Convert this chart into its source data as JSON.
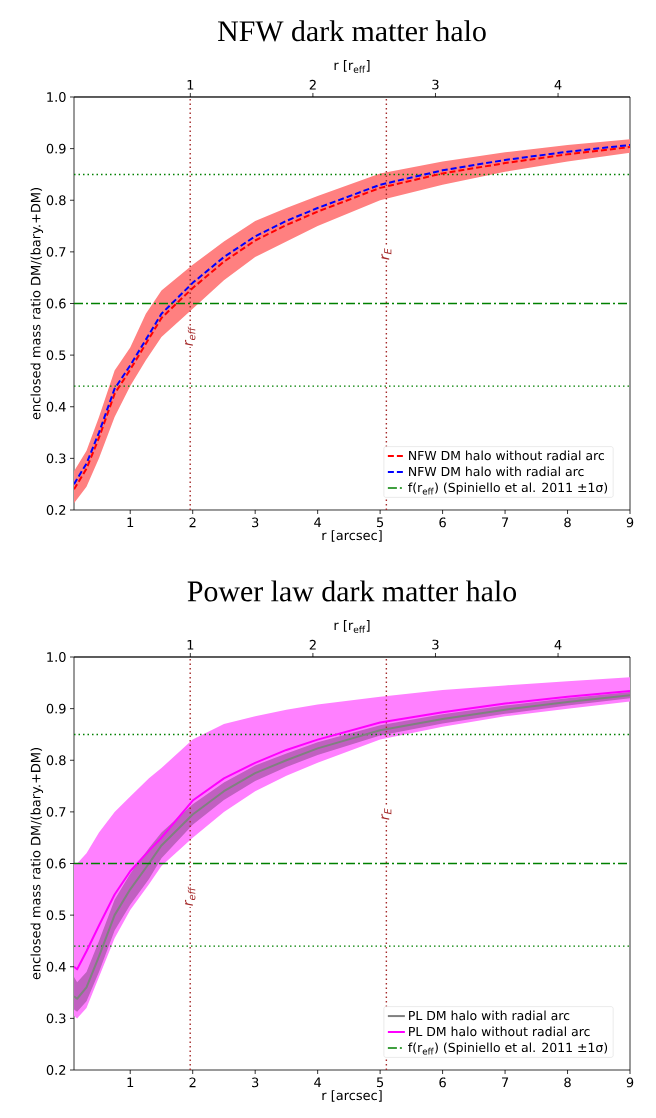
{
  "chart_data": [
    {
      "type": "line",
      "title": "NFW dark matter halo",
      "xlabel": "r [arcsec]",
      "ylabel": "enclosed mass ratio DM/(bary.+DM)",
      "x2label": "r [r$_{eff}$]",
      "x": [
        0.1,
        0.3,
        0.5,
        0.75,
        1,
        1.25,
        1.5,
        2,
        2.5,
        3,
        3.5,
        4,
        5,
        6,
        7,
        8,
        9
      ],
      "series": [
        {
          "name": "NFW DM halo without radial arc",
          "color": "#ff0000",
          "line_style": "dashed",
          "values": [
            0.24,
            0.28,
            0.34,
            0.425,
            0.472,
            0.522,
            0.572,
            0.63,
            0.681,
            0.722,
            0.752,
            0.778,
            0.824,
            0.852,
            0.872,
            0.889,
            0.903
          ],
          "lower": [
            0.213,
            0.245,
            0.3,
            0.38,
            0.44,
            0.49,
            0.535,
            0.59,
            0.645,
            0.69,
            0.72,
            0.75,
            0.8,
            0.83,
            0.855,
            0.875,
            0.892
          ],
          "upper": [
            0.275,
            0.315,
            0.38,
            0.47,
            0.515,
            0.58,
            0.625,
            0.675,
            0.72,
            0.76,
            0.785,
            0.808,
            0.852,
            0.875,
            0.893,
            0.907,
            0.918
          ]
        },
        {
          "name": "NFW DM halo with radial arc",
          "color": "#0000ff",
          "line_style": "dashed",
          "values": [
            0.25,
            0.29,
            0.35,
            0.435,
            0.48,
            0.53,
            0.58,
            0.64,
            0.69,
            0.73,
            0.76,
            0.785,
            0.83,
            0.858,
            0.878,
            0.894,
            0.907
          ]
        }
      ],
      "xlim": [
        0.1,
        9
      ],
      "xticks": [
        1,
        2,
        3,
        4,
        5,
        6,
        7,
        8,
        9
      ],
      "ylim": [
        0.2,
        1.0
      ],
      "yticks": [
        0.2,
        0.3,
        0.4,
        0.5,
        0.6,
        0.7,
        0.8,
        0.9,
        {
          "value": 1.0,
          "label": "1.0"
        }
      ],
      "x2lim": [
        0.051,
        4.587
      ],
      "x2ticks": [
        1,
        2,
        3,
        4
      ],
      "ref_lines": [
        {
          "axis": "x",
          "value": 1.96,
          "label": "r$_{eff}$",
          "color": "#a52a2a",
          "line_style": "dotted"
        },
        {
          "axis": "x",
          "value": 5.1,
          "label": "r$_{E}$",
          "color": "#a52a2a",
          "line_style": "dotted"
        },
        {
          "axis": "y",
          "value": 0.85,
          "color": "#008000",
          "line_style": "dotted"
        },
        {
          "axis": "y",
          "value": 0.44,
          "color": "#008000",
          "line_style": "dotted"
        },
        {
          "axis": "y",
          "value": 0.6,
          "label": "f(r$_{eff}$) (Spiniello et al. 2011 ±1σ)",
          "color": "#008000",
          "line_style": "dashdot"
        }
      ],
      "legend": "bottom right"
    },
    {
      "type": "line",
      "title": "Power law dark matter halo",
      "xlabel": "r [arcsec]",
      "ylabel": "enclosed mass ratio DM/(bary.+DM)",
      "x2label": "r [r$_{eff}$]",
      "x": [
        0.1,
        0.15,
        0.3,
        0.5,
        0.75,
        1,
        1.3,
        1.5,
        2,
        2.5,
        3,
        3.5,
        4,
        5,
        6,
        7,
        8,
        9
      ],
      "series": [
        {
          "name": "PL DM halo with radial arc",
          "color": "#808080",
          "line_style": "solid",
          "values": [
            0.343,
            0.338,
            0.36,
            0.42,
            0.5,
            0.55,
            0.6,
            0.635,
            0.695,
            0.74,
            0.775,
            0.8,
            0.823,
            0.858,
            0.88,
            0.898,
            0.913,
            0.926
          ],
          "lower": [
            0.317,
            0.313,
            0.333,
            0.39,
            0.47,
            0.52,
            0.57,
            0.61,
            0.675,
            0.723,
            0.76,
            0.787,
            0.81,
            0.848,
            0.871,
            0.89,
            0.906,
            0.92
          ],
          "upper": [
            0.38,
            0.37,
            0.39,
            0.45,
            0.53,
            0.58,
            0.63,
            0.66,
            0.715,
            0.757,
            0.79,
            0.813,
            0.835,
            0.868,
            0.889,
            0.906,
            0.92,
            0.932
          ]
        },
        {
          "name": "PL DM halo without radial arc",
          "color": "#ff00ff",
          "line_style": "solid",
          "values": [
            0.4,
            0.395,
            0.43,
            0.48,
            0.54,
            0.585,
            0.625,
            0.65,
            0.722,
            0.765,
            0.795,
            0.82,
            0.84,
            0.873,
            0.893,
            0.91,
            0.923,
            0.934
          ],
          "lower": [
            0.305,
            0.3,
            0.32,
            0.38,
            0.455,
            0.51,
            0.56,
            0.595,
            0.65,
            0.7,
            0.74,
            0.77,
            0.795,
            0.84,
            0.865,
            0.885,
            0.9,
            0.914
          ],
          "upper": [
            0.6,
            0.6,
            0.62,
            0.66,
            0.7,
            0.73,
            0.765,
            0.785,
            0.84,
            0.87,
            0.885,
            0.898,
            0.908,
            0.923,
            0.936,
            0.945,
            0.953,
            0.961
          ]
        }
      ],
      "xlim": [
        0.1,
        9
      ],
      "xticks": [
        1,
        2,
        3,
        4,
        5,
        6,
        7,
        8,
        9
      ],
      "ylim": [
        0.2,
        1.0
      ],
      "yticks": [
        0.2,
        0.3,
        0.4,
        0.5,
        0.6,
        0.7,
        0.8,
        0.9,
        {
          "value": 1.0,
          "label": "1.0"
        }
      ],
      "x2lim": [
        0.051,
        4.587
      ],
      "x2ticks": [
        1,
        2,
        3,
        4
      ],
      "ref_lines": [
        {
          "axis": "x",
          "value": 1.96,
          "label": "r$_{eff}$",
          "color": "#a52a2a",
          "line_style": "dotted"
        },
        {
          "axis": "x",
          "value": 5.1,
          "label": "r$_{E}$",
          "color": "#a52a2a",
          "line_style": "dotted"
        },
        {
          "axis": "y",
          "value": 0.85,
          "color": "#008000",
          "line_style": "dotted"
        },
        {
          "axis": "y",
          "value": 0.44,
          "color": "#008000",
          "line_style": "dotted"
        },
        {
          "axis": "y",
          "value": 0.6,
          "label": "f(r$_{eff}$) (Spiniello et al. 2011 ±1σ)",
          "color": "#008000",
          "line_style": "dashdot"
        }
      ],
      "legend": "bottom right"
    }
  ]
}
